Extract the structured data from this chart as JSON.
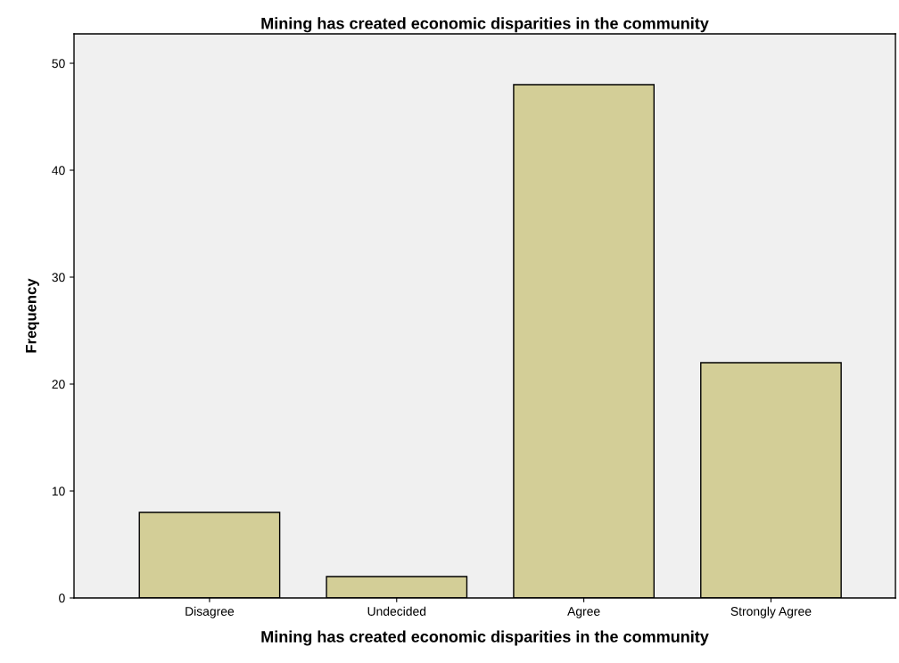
{
  "chart_data": {
    "type": "bar",
    "title": "Mining has created economic disparities in the community",
    "xlabel": "Mining has created economic disparities in the community",
    "ylabel": "Frequency",
    "categories": [
      "Disagree",
      "Undecided",
      "Agree",
      "Strongly Agree"
    ],
    "values": [
      8,
      2,
      48,
      22
    ],
    "color": "#d3ce97",
    "ylim": [
      0,
      52.75
    ],
    "yticks": [
      0,
      10,
      20,
      30,
      40,
      50
    ],
    "grid": false,
    "legend": false
  }
}
